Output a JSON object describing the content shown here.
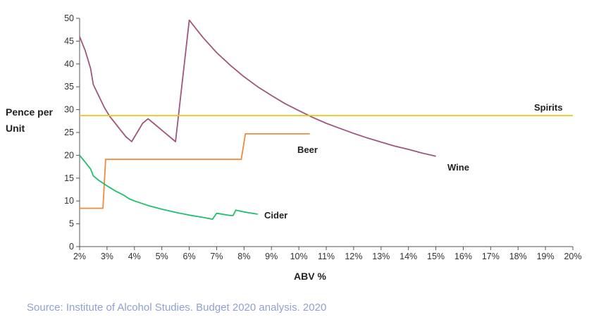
{
  "chart_data": {
    "type": "line",
    "xlabel": "ABV %",
    "ylabel": "Pence per Unit",
    "xlim": [
      2,
      20
    ],
    "ylim": [
      0,
      50
    ],
    "x_ticks": [
      2,
      3,
      4,
      5,
      6,
      7,
      8,
      9,
      10,
      11,
      12,
      13,
      14,
      15,
      16,
      17,
      18,
      19,
      20
    ],
    "x_tick_labels": [
      "2%",
      "3%",
      "4%",
      "5%",
      "6%",
      "7%",
      "8%",
      "9%",
      "10%",
      "11%",
      "12%",
      "13%",
      "14%",
      "15%",
      "16%",
      "17%",
      "18%",
      "19%",
      "20%"
    ],
    "y_ticks": [
      0,
      5,
      10,
      15,
      20,
      25,
      30,
      35,
      40,
      45,
      50
    ],
    "y_tick_labels": [
      "0",
      "5",
      "10",
      "15",
      "20",
      "25",
      "30",
      "35",
      "40",
      "45",
      "50"
    ],
    "grid": false,
    "series": [
      {
        "name": "Wine",
        "color": "#a0567c",
        "points": [
          [
            2.0,
            46.0
          ],
          [
            2.2,
            43.0
          ],
          [
            2.4,
            39.0
          ],
          [
            2.5,
            35.5
          ],
          [
            2.7,
            33.0
          ],
          [
            2.9,
            30.5
          ],
          [
            3.1,
            28.5
          ],
          [
            3.3,
            27.0
          ],
          [
            3.5,
            25.5
          ],
          [
            3.7,
            24.0
          ],
          [
            3.8,
            23.5
          ],
          [
            3.9,
            23.0
          ],
          [
            4.1,
            25.0
          ],
          [
            4.3,
            27.0
          ],
          [
            4.5,
            28.0
          ],
          [
            4.7,
            27.0
          ],
          [
            5.0,
            25.5
          ],
          [
            5.3,
            24.0
          ],
          [
            5.5,
            23.0
          ],
          [
            6.0,
            49.6
          ],
          [
            6.5,
            45.8
          ],
          [
            7.0,
            42.5
          ],
          [
            7.5,
            39.7
          ],
          [
            8.0,
            37.2
          ],
          [
            8.5,
            35.0
          ],
          [
            9.0,
            33.1
          ],
          [
            9.5,
            31.3
          ],
          [
            10.0,
            29.8
          ],
          [
            10.5,
            28.3
          ],
          [
            11.0,
            27.0
          ],
          [
            11.5,
            25.9
          ],
          [
            12.0,
            24.8
          ],
          [
            12.5,
            23.8
          ],
          [
            13.0,
            22.9
          ],
          [
            13.5,
            22.0
          ],
          [
            14.0,
            21.3
          ],
          [
            14.5,
            20.5
          ],
          [
            15.0,
            19.8
          ]
        ]
      },
      {
        "name": "Spirits",
        "color": "#f0c419",
        "points": [
          [
            2.0,
            28.7
          ],
          [
            20.0,
            28.7
          ]
        ]
      },
      {
        "name": "Beer",
        "color": "#f08a3c",
        "points": [
          [
            2.0,
            8.4
          ],
          [
            2.85,
            8.4
          ],
          [
            2.95,
            19.1
          ],
          [
            7.9,
            19.1
          ],
          [
            8.05,
            24.7
          ],
          [
            10.4,
            24.7
          ]
        ]
      },
      {
        "name": "Cider",
        "color": "#1fbf6e",
        "points": [
          [
            2.0,
            20.0
          ],
          [
            2.2,
            18.5
          ],
          [
            2.4,
            17.0
          ],
          [
            2.5,
            15.5
          ],
          [
            2.7,
            14.5
          ],
          [
            3.0,
            13.3
          ],
          [
            3.3,
            12.2
          ],
          [
            3.6,
            11.3
          ],
          [
            3.8,
            10.5
          ],
          [
            4.0,
            10.0
          ],
          [
            4.5,
            9.0
          ],
          [
            5.0,
            8.2
          ],
          [
            5.5,
            7.5
          ],
          [
            6.0,
            6.9
          ],
          [
            6.5,
            6.4
          ],
          [
            6.85,
            6.0
          ],
          [
            7.0,
            7.3
          ],
          [
            7.5,
            6.8
          ],
          [
            7.6,
            6.8
          ],
          [
            7.7,
            8.0
          ],
          [
            8.0,
            7.6
          ],
          [
            8.5,
            7.1
          ]
        ]
      }
    ],
    "annotations": [
      {
        "text": "Spirits",
        "series": "Spirits"
      },
      {
        "text": "Beer",
        "series": "Beer"
      },
      {
        "text": "Wine",
        "series": "Wine"
      },
      {
        "text": "Cider",
        "series": "Cider"
      }
    ]
  },
  "source_text": "Source: Institute of Alcohol Studies. Budget 2020 analysis. 2020"
}
